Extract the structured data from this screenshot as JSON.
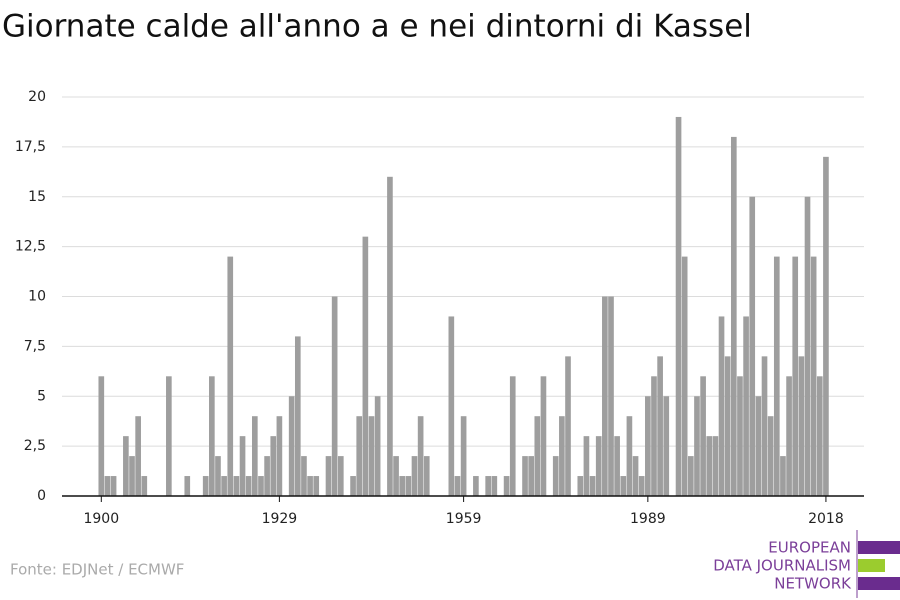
{
  "chart_data": {
    "type": "bar",
    "title": "Giornate calde all'anno a e nei dintorni di Kassel",
    "source": "Fonte: EDJNet / ECMWF",
    "logo": [
      "EUROPEAN",
      "DATA JOURNALISM",
      "NETWORK"
    ],
    "color": "#9e9e9e",
    "grid": true,
    "x": [
      1900,
      1901,
      1902,
      1903,
      1904,
      1905,
      1906,
      1907,
      1908,
      1909,
      1910,
      1911,
      1912,
      1913,
      1914,
      1915,
      1916,
      1917,
      1918,
      1919,
      1920,
      1921,
      1922,
      1923,
      1924,
      1925,
      1926,
      1927,
      1928,
      1929,
      1930,
      1931,
      1932,
      1933,
      1934,
      1935,
      1936,
      1937,
      1938,
      1939,
      1940,
      1941,
      1942,
      1943,
      1944,
      1945,
      1946,
      1947,
      1948,
      1949,
      1950,
      1951,
      1952,
      1953,
      1954,
      1955,
      1956,
      1957,
      1958,
      1959,
      1960,
      1961,
      1962,
      1963,
      1964,
      1965,
      1966,
      1967,
      1968,
      1969,
      1970,
      1971,
      1972,
      1973,
      1974,
      1975,
      1976,
      1977,
      1978,
      1979,
      1980,
      1981,
      1982,
      1983,
      1984,
      1985,
      1986,
      1987,
      1988,
      1989,
      1990,
      1991,
      1992,
      1993,
      1994,
      1995,
      1996,
      1997,
      1998,
      1999,
      2000,
      2001,
      2002,
      2003,
      2004,
      2005,
      2006,
      2007,
      2008,
      2009,
      2010,
      2011,
      2012,
      2013,
      2014,
      2015,
      2016,
      2017,
      2018
    ],
    "values": [
      6,
      1,
      1,
      0,
      3,
      2,
      4,
      1,
      0,
      0,
      0,
      6,
      0,
      0,
      1,
      0,
      0,
      1,
      6,
      2,
      1,
      12,
      1,
      3,
      1,
      4,
      1,
      2,
      3,
      4,
      0,
      5,
      8,
      2,
      1,
      1,
      0,
      2,
      10,
      2,
      0,
      1,
      4,
      13,
      4,
      5,
      0,
      16,
      2,
      1,
      1,
      2,
      4,
      2,
      0,
      0,
      0,
      9,
      1,
      4,
      0,
      1,
      0,
      1,
      1,
      0,
      1,
      6,
      0,
      2,
      2,
      4,
      6,
      0,
      2,
      4,
      7,
      0,
      1,
      3,
      1,
      3,
      10,
      10,
      3,
      1,
      4,
      2,
      1,
      5,
      6,
      7,
      5,
      0,
      19,
      12,
      2,
      5,
      6,
      3,
      3,
      9,
      7,
      18,
      6,
      9,
      15,
      5,
      7,
      4,
      12,
      2,
      6,
      12,
      7,
      15,
      12,
      6,
      17
    ],
    "xlim": [
      1893.6,
      2024.2
    ],
    "xticks": [
      1900,
      1929,
      1959,
      1989,
      2018
    ],
    "ylim": [
      0,
      20
    ],
    "yticks": [
      0,
      {
        "value": 2.5,
        "label": "2,5"
      },
      5,
      {
        "value": 7.5,
        "label": "7,5"
      },
      10,
      {
        "value": 12.5,
        "label": "12,5"
      },
      15,
      {
        "value": 17.5,
        "label": "17,5"
      },
      20
    ]
  }
}
